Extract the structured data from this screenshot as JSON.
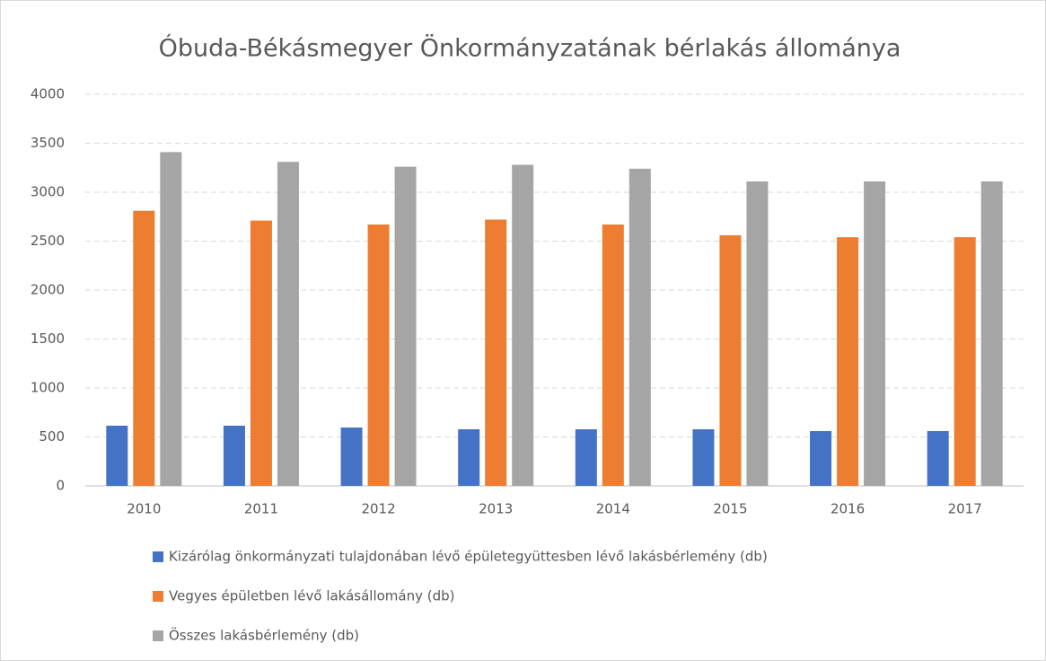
{
  "chart_data": {
    "type": "bar",
    "title": "Óbuda-Békásmegyer Önkormányzatának bérlakás állománya",
    "categories": [
      "2010",
      "2011",
      "2012",
      "2013",
      "2014",
      "2015",
      "2016",
      "2017"
    ],
    "series": [
      {
        "name": "Kizárólag önkormányzati tulajdonában lévő épületegyüttesben lévő lakásbérlemény (db)",
        "color": "#4472c4",
        "values": [
          615,
          615,
          596,
          578,
          578,
          578,
          560,
          560
        ]
      },
      {
        "name": "Vegyes épületben lévő lakásállomány (db)",
        "color": "#ed7d31",
        "values": [
          2810,
          2710,
          2670,
          2720,
          2670,
          2560,
          2540,
          2540
        ]
      },
      {
        "name": "Összes lakásbérlemény (db)",
        "color": "#a5a5a5",
        "values": [
          3410,
          3310,
          3260,
          3280,
          3240,
          3110,
          3110,
          3110
        ]
      }
    ],
    "ylim": [
      0,
      4000
    ],
    "yticks": [
      0,
      500,
      1000,
      1500,
      2000,
      2500,
      3000,
      3500,
      4000
    ],
    "grid": true
  }
}
